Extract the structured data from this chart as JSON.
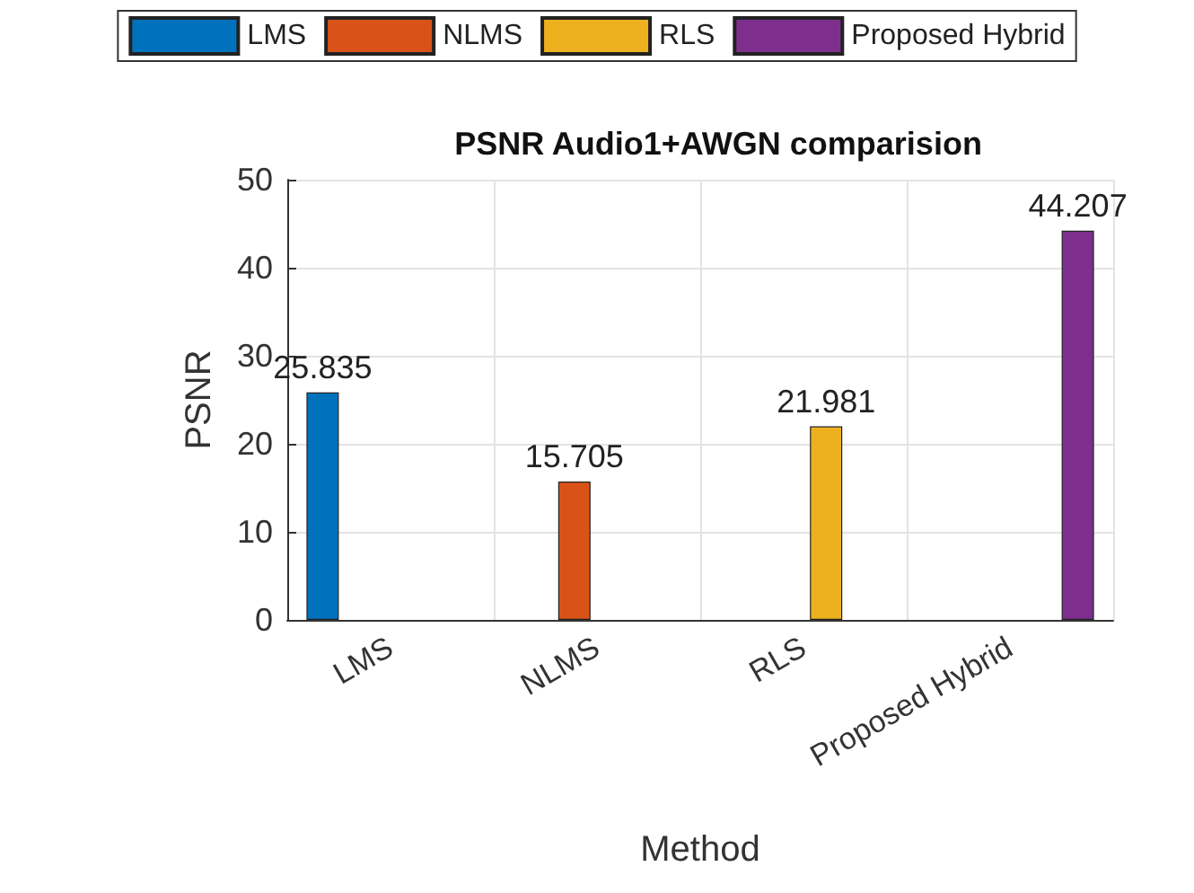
{
  "chart_data": {
    "type": "bar",
    "title": "PSNR Audio1+AWGN comparision",
    "xlabel": "Method",
    "ylabel": "PSNR",
    "categories": [
      "LMS",
      "NLMS",
      "RLS",
      "Proposed Hybrid"
    ],
    "series": [
      {
        "name": "LMS",
        "color": "#0072bd",
        "values": [
          25.835,
          null,
          null,
          null
        ]
      },
      {
        "name": "NLMS",
        "color": "#d95319",
        "values": [
          null,
          15.705,
          null,
          null
        ]
      },
      {
        "name": "RLS",
        "color": "#edb120",
        "values": [
          null,
          null,
          21.981,
          null
        ]
      },
      {
        "name": "Proposed Hybrid",
        "color": "#7e2f8e",
        "values": [
          null,
          null,
          null,
          44.207
        ]
      }
    ],
    "ylim": [
      0,
      50
    ],
    "yticks": [
      0,
      10,
      20,
      30,
      40,
      50
    ],
    "grid": true,
    "legend": "top",
    "data_labels": true
  }
}
